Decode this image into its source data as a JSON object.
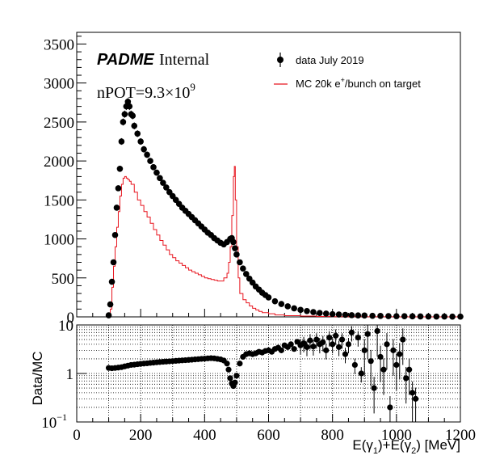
{
  "chart_data": [
    {
      "type": "line",
      "panel": "main",
      "xlabel": "E(γ1)+E(γ2) [MeV]",
      "xlim": [
        0,
        1200
      ],
      "ylim": [
        0,
        3650
      ],
      "x_ticks": [
        0,
        200,
        400,
        600,
        800,
        1000,
        1200
      ],
      "y_ticks": [
        0,
        500,
        1000,
        1500,
        2000,
        2500,
        3000,
        3500
      ],
      "legend_position": "top-right",
      "annotations": {
        "experiment": "PADME",
        "status": "Internal",
        "npot_label": "nPOT=9.3×10",
        "npot_exp": "9"
      },
      "legend": {
        "data_label": "data July 2019",
        "mc_label_prefix": "MC 20k e",
        "mc_label_sup": "+",
        "mc_label_suffix": "/bunch on target"
      },
      "colors": {
        "data": "#000000",
        "mc": "#e8141e"
      },
      "series": [
        {
          "name": "data July 2019",
          "style": "markers",
          "points": [
            [
              100,
              20
            ],
            [
              105,
              160
            ],
            [
              110,
              450
            ],
            [
              115,
              700
            ],
            [
              120,
              1050
            ],
            [
              125,
              1400
            ],
            [
              130,
              1650
            ],
            [
              135,
              1900
            ],
            [
              140,
              2250
            ],
            [
              145,
              2500
            ],
            [
              150,
              2600
            ],
            [
              155,
              2700
            ],
            [
              160,
              2760
            ],
            [
              165,
              2700
            ],
            [
              170,
              2600
            ],
            [
              175,
              2580
            ],
            [
              180,
              2450
            ],
            [
              190,
              2350
            ],
            [
              200,
              2250
            ],
            [
              210,
              2150
            ],
            [
              220,
              2080
            ],
            [
              230,
              2000
            ],
            [
              240,
              1920
            ],
            [
              250,
              1850
            ],
            [
              260,
              1780
            ],
            [
              270,
              1720
            ],
            [
              280,
              1660
            ],
            [
              290,
              1600
            ],
            [
              300,
              1550
            ],
            [
              310,
              1500
            ],
            [
              320,
              1450
            ],
            [
              330,
              1400
            ],
            [
              340,
              1360
            ],
            [
              350,
              1320
            ],
            [
              360,
              1280
            ],
            [
              370,
              1240
            ],
            [
              380,
              1200
            ],
            [
              390,
              1160
            ],
            [
              400,
              1120
            ],
            [
              410,
              1080
            ],
            [
              420,
              1050
            ],
            [
              430,
              1010
            ],
            [
              440,
              980
            ],
            [
              450,
              950
            ],
            [
              460,
              930
            ],
            [
              470,
              960
            ],
            [
              480,
              1000
            ],
            [
              485,
              1010
            ],
            [
              490,
              960
            ],
            [
              495,
              880
            ],
            [
              500,
              800
            ],
            [
              510,
              700
            ],
            [
              520,
              620
            ],
            [
              530,
              550
            ],
            [
              540,
              490
            ],
            [
              550,
              440
            ],
            [
              560,
              390
            ],
            [
              570,
              350
            ],
            [
              580,
              310
            ],
            [
              590,
              280
            ],
            [
              600,
              250
            ],
            [
              620,
              200
            ],
            [
              640,
              165
            ],
            [
              660,
              135
            ],
            [
              680,
              110
            ],
            [
              700,
              90
            ],
            [
              720,
              75
            ],
            [
              740,
              62
            ],
            [
              760,
              50
            ],
            [
              780,
              42
            ],
            [
              800,
              35
            ],
            [
              820,
              30
            ],
            [
              840,
              26
            ],
            [
              860,
              22
            ],
            [
              880,
              19
            ],
            [
              900,
              17
            ],
            [
              925,
              14
            ],
            [
              950,
              12
            ],
            [
              975,
              10
            ],
            [
              1000,
              9
            ],
            [
              1025,
              8
            ],
            [
              1050,
              7
            ],
            [
              1075,
              6
            ],
            [
              1100,
              5
            ],
            [
              1125,
              4
            ],
            [
              1150,
              4
            ],
            [
              1175,
              3
            ],
            [
              1200,
              3
            ]
          ]
        },
        {
          "name": "MC 20k e+/bunch on target",
          "style": "step",
          "points": [
            [
              100,
              0
            ],
            [
              105,
              100
            ],
            [
              110,
              380
            ],
            [
              115,
              650
            ],
            [
              120,
              900
            ],
            [
              125,
              1150
            ],
            [
              130,
              1350
            ],
            [
              135,
              1550
            ],
            [
              140,
              1700
            ],
            [
              145,
              1780
            ],
            [
              150,
              1800
            ],
            [
              155,
              1780
            ],
            [
              160,
              1760
            ],
            [
              165,
              1740
            ],
            [
              170,
              1700
            ],
            [
              180,
              1600
            ],
            [
              190,
              1500
            ],
            [
              200,
              1430
            ],
            [
              210,
              1350
            ],
            [
              220,
              1280
            ],
            [
              230,
              1200
            ],
            [
              240,
              1120
            ],
            [
              250,
              1050
            ],
            [
              260,
              980
            ],
            [
              270,
              920
            ],
            [
              280,
              860
            ],
            [
              290,
              800
            ],
            [
              300,
              760
            ],
            [
              310,
              720
            ],
            [
              320,
              690
            ],
            [
              330,
              660
            ],
            [
              340,
              630
            ],
            [
              350,
              600
            ],
            [
              360,
              580
            ],
            [
              370,
              560
            ],
            [
              380,
              540
            ],
            [
              390,
              520
            ],
            [
              400,
              500
            ],
            [
              410,
              490
            ],
            [
              420,
              480
            ],
            [
              430,
              470
            ],
            [
              440,
              460
            ],
            [
              450,
              460
            ],
            [
              460,
              500
            ],
            [
              470,
              560
            ],
            [
              475,
              700
            ],
            [
              480,
              900
            ],
            [
              485,
              1300
            ],
            [
              490,
              1800
            ],
            [
              493,
              1930
            ],
            [
              496,
              1500
            ],
            [
              500,
              900
            ],
            [
              505,
              500
            ],
            [
              510,
              300
            ],
            [
              520,
              220
            ],
            [
              530,
              180
            ],
            [
              540,
              140
            ],
            [
              550,
              110
            ],
            [
              560,
              90
            ],
            [
              570,
              70
            ],
            [
              580,
              55
            ],
            [
              600,
              40
            ],
            [
              620,
              25
            ],
            [
              650,
              15
            ],
            [
              700,
              10
            ],
            [
              750,
              5
            ],
            [
              800,
              3
            ],
            [
              900,
              1
            ],
            [
              1000,
              0
            ],
            [
              1200,
              0
            ]
          ]
        }
      ]
    },
    {
      "type": "scatter",
      "panel": "ratio",
      "ylabel": "Data/MC",
      "log_y": true,
      "xlim": [
        0,
        1200
      ],
      "ylim": [
        0.1,
        10
      ],
      "x_ticks": [
        0,
        200,
        400,
        600,
        800,
        1000,
        1200
      ],
      "y_ticks": [
        "10",
        "1",
        "10"
      ],
      "y_tick_sup": [
        "",
        "",
        "−1"
      ],
      "grid": true,
      "series": [
        {
          "name": "",
          "points": [
            [
              100,
              1.3
            ],
            [
              110,
              1.28
            ],
            [
              120,
              1.3
            ],
            [
              130,
              1.32
            ],
            [
              140,
              1.35
            ],
            [
              150,
              1.4
            ],
            [
              160,
              1.45
            ],
            [
              170,
              1.5
            ],
            [
              180,
              1.52
            ],
            [
              190,
              1.55
            ],
            [
              200,
              1.58
            ],
            [
              210,
              1.6
            ],
            [
              220,
              1.62
            ],
            [
              230,
              1.65
            ],
            [
              240,
              1.67
            ],
            [
              250,
              1.7
            ],
            [
              260,
              1.72
            ],
            [
              270,
              1.74
            ],
            [
              280,
              1.76
            ],
            [
              290,
              1.78
            ],
            [
              300,
              1.8
            ],
            [
              310,
              1.82
            ],
            [
              320,
              1.84
            ],
            [
              330,
              1.86
            ],
            [
              340,
              1.88
            ],
            [
              350,
              1.9
            ],
            [
              360,
              1.92
            ],
            [
              370,
              1.95
            ],
            [
              380,
              1.97
            ],
            [
              390,
              2.0
            ],
            [
              400,
              2.02
            ],
            [
              410,
              2.05
            ],
            [
              420,
              2.07
            ],
            [
              430,
              2.05
            ],
            [
              440,
              2.0
            ],
            [
              450,
              1.95
            ],
            [
              460,
              1.85
            ],
            [
              470,
              1.6
            ],
            [
              475,
              1.2
            ],
            [
              480,
              0.8
            ],
            [
              485,
              0.62
            ],
            [
              490,
              0.55
            ],
            [
              495,
              0.65
            ],
            [
              500,
              0.9
            ],
            [
              510,
              1.6
            ],
            [
              520,
              2.2
            ],
            [
              530,
              2.5
            ],
            [
              540,
              2.6
            ],
            [
              550,
              2.5
            ],
            [
              560,
              2.6
            ],
            [
              570,
              2.8
            ],
            [
              580,
              2.7
            ],
            [
              590,
              2.9
            ],
            [
              600,
              3.0
            ],
            [
              610,
              2.8
            ],
            [
              620,
              3.2
            ],
            [
              630,
              3.4
            ],
            [
              640,
              3.0
            ],
            [
              650,
              3.8
            ],
            [
              660,
              3.5
            ],
            [
              670,
              4.0
            ],
            [
              680,
              3.2
            ],
            [
              690,
              4.5
            ],
            [
              700,
              3.8
            ],
            [
              710,
              4.2
            ],
            [
              720,
              3.5
            ],
            [
              730,
              4.8
            ],
            [
              740,
              3.6
            ],
            [
              750,
              5.0
            ],
            [
              760,
              4.0
            ],
            [
              770,
              4.4
            ],
            [
              780,
              3.0
            ],
            [
              790,
              5.5
            ],
            [
              800,
              4.0
            ],
            [
              810,
              6.0
            ],
            [
              820,
              3.5
            ],
            [
              830,
              5.0
            ],
            [
              840,
              2.5
            ],
            [
              850,
              4.0
            ],
            [
              860,
              7.0
            ],
            [
              870,
              1.5
            ],
            [
              880,
              5.5
            ],
            [
              890,
              1.0
            ],
            [
              900,
              3.0
            ],
            [
              910,
              6.5
            ],
            [
              920,
              1.8
            ],
            [
              930,
              0.5
            ],
            [
              940,
              7.5
            ],
            [
              950,
              2.2
            ],
            [
              960,
              1.2
            ],
            [
              970,
              4.0
            ],
            [
              980,
              0.2
            ],
            [
              990,
              3.0
            ],
            [
              1000,
              1.5
            ],
            [
              1010,
              2.5
            ],
            [
              1020,
              5.0
            ],
            [
              1030,
              0.8
            ],
            [
              1040,
              1.2
            ],
            [
              1050,
              0.4
            ],
            [
              1060,
              0.3
            ]
          ]
        }
      ]
    }
  ]
}
